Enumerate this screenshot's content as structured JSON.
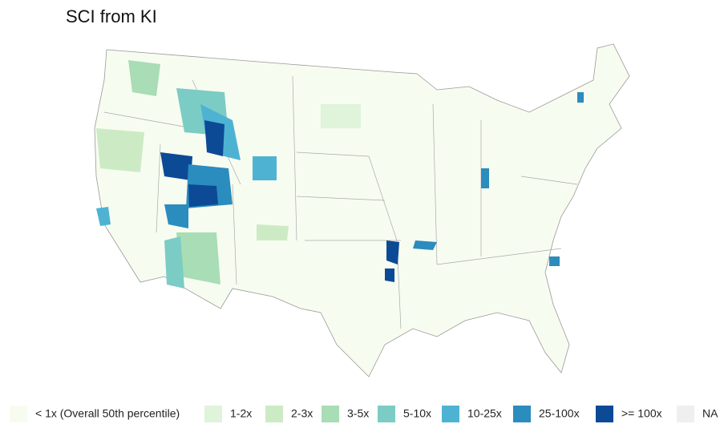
{
  "title": "SCI from KI",
  "legend": {
    "items": [
      {
        "label": "< 1x (Overall 50th percentile)",
        "color": "#f7fcf0"
      },
      {
        "label": "1-2x",
        "color": "#e0f3db"
      },
      {
        "label": "2-3x",
        "color": "#ccebc5"
      },
      {
        "label": "3-5x",
        "color": "#a8ddb5"
      },
      {
        "label": "5-10x",
        "color": "#7bccc4"
      },
      {
        "label": "10-25x",
        "color": "#4eb3d3"
      },
      {
        "label": "25-100x",
        "color": "#2b8cbe"
      },
      {
        "label": ">= 100x",
        "color": "#0c4a96"
      },
      {
        "label": "NA",
        "color": "#efefef"
      }
    ]
  }
}
